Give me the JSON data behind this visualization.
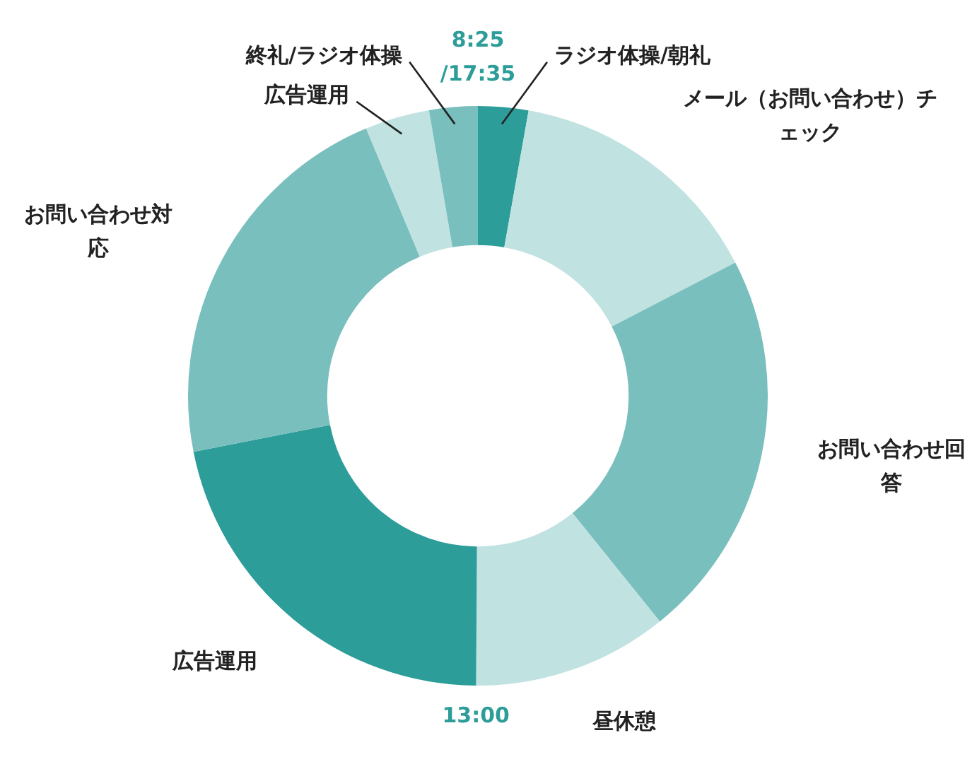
{
  "chart_data": {
    "type": "donut",
    "categories": [
      "ラジオ体操/朝礼",
      "メール（お問い合わせ）チェック",
      "お問い合わせ回答",
      "昼休憩",
      "広告運用",
      "お問い合わせ対応",
      "広告運用",
      "終礼/ラジオ体操"
    ],
    "values": [
      2.8,
      14.6,
      21.8,
      10.9,
      21.8,
      21.8,
      3.6,
      2.7
    ],
    "colors": [
      "#2c9d99",
      "#c0e2e1",
      "#78bfbd",
      "#c0e2e1",
      "#2c9d99",
      "#78bfbd",
      "#c0e2e1",
      "#78bfbd"
    ],
    "annotations": [
      {
        "text": "8:25\n/17:35",
        "x": "ラジオ体操/朝礼"
      },
      {
        "text": "13:00",
        "x": "広告運用"
      }
    ]
  }
}
